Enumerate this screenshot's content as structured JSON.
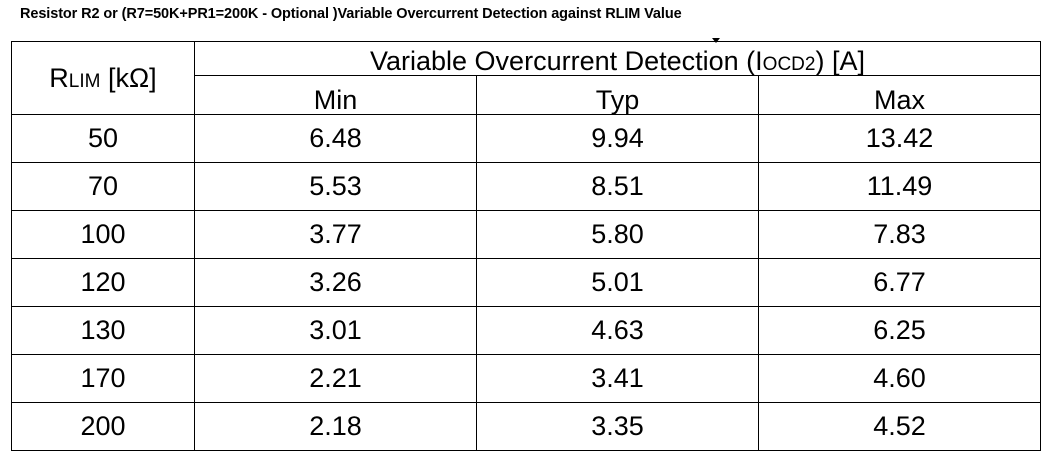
{
  "caption": "Resistor R2 or (R7=50K+PR1=200K - Optional )Variable Overcurrent Detection against RLIM Value",
  "table": {
    "rlim_header": {
      "main": "R",
      "sub": "LIM",
      "unit": " [kΩ]"
    },
    "group_header": {
      "prefix": "Variable Overcurrent Detection (I",
      "sub": "OCD2",
      "suffix": ") [A]"
    },
    "columns": [
      "Min",
      "Typ",
      "Max"
    ],
    "rows": [
      [
        "50",
        "6.48",
        "9.94",
        "13.42"
      ],
      [
        "70",
        "5.53",
        "8.51",
        "11.49"
      ],
      [
        "100",
        "3.77",
        "5.80",
        "7.83"
      ],
      [
        "120",
        "3.26",
        "5.01",
        "6.77"
      ],
      [
        "130",
        "3.01",
        "4.63",
        "6.25"
      ],
      [
        "170",
        "2.21",
        "3.41",
        "4.60"
      ],
      [
        "200",
        "2.18",
        "3.35",
        "4.52"
      ]
    ]
  }
}
